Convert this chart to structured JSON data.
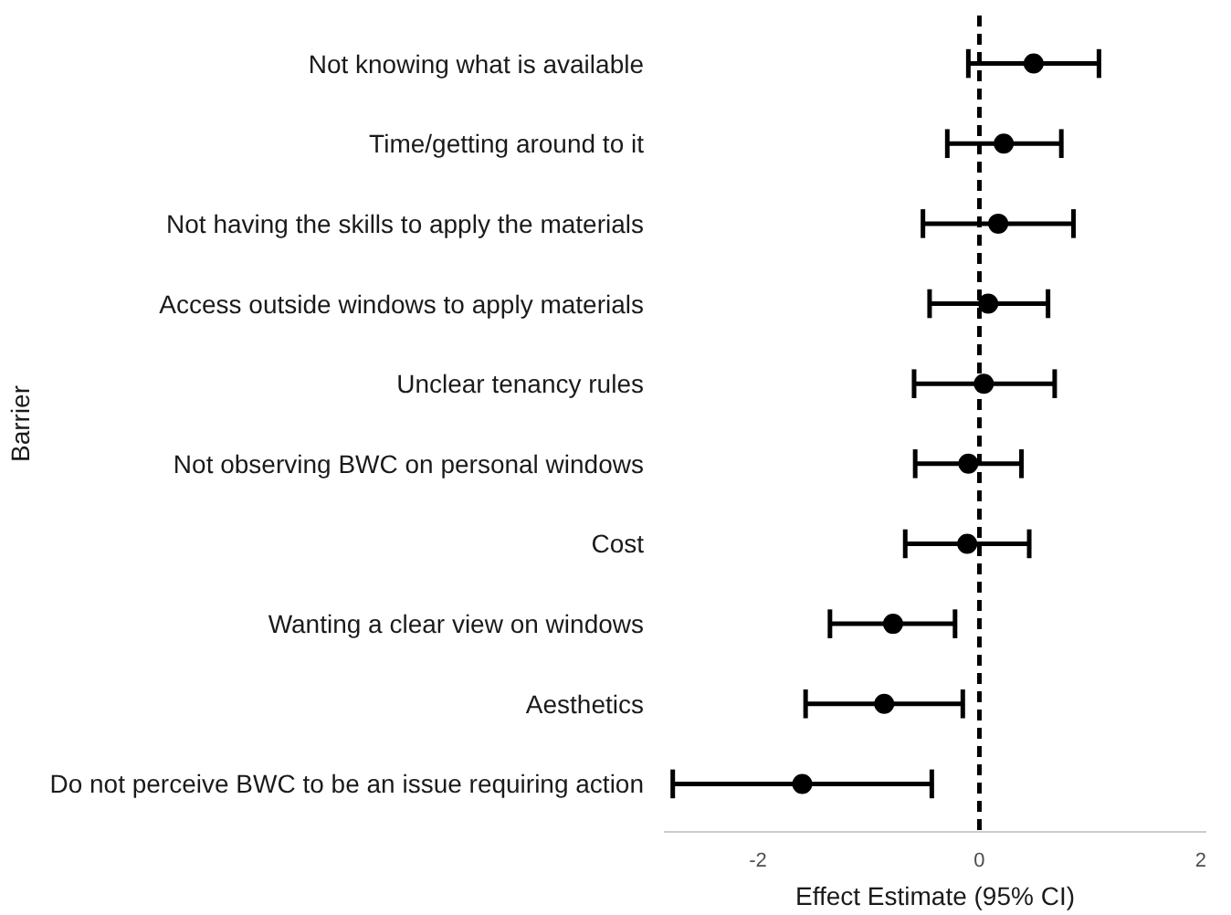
{
  "chart_data": {
    "type": "scatter",
    "orientation": "horizontal",
    "xlabel": "Effect Estimate (95% CI)",
    "ylabel": "Barrier",
    "categories": [
      "Not knowing what is available",
      "Time/getting around to it",
      "Not having the skills to apply the materials",
      "Access outside windows to apply materials",
      "Unclear tenancy rules",
      "Not observing BWC on personal windows",
      "Cost",
      "Wanting a clear view on windows",
      "Aesthetics",
      "Do not perceive BWC to be an issue requiring action"
    ],
    "series": [
      {
        "color": "#000000",
        "values": [
          0.49,
          0.22,
          0.17,
          0.08,
          0.04,
          -0.1,
          -0.11,
          -0.78,
          -0.86,
          -1.6
        ],
        "errors": [
          [
            -0.1,
            1.08
          ],
          [
            -0.29,
            0.74
          ],
          [
            -0.51,
            0.85
          ],
          [
            -0.45,
            0.62
          ],
          [
            -0.59,
            0.68
          ],
          [
            -0.58,
            0.38
          ],
          [
            -0.67,
            0.45
          ],
          [
            -1.35,
            -0.22
          ],
          [
            -1.57,
            -0.15
          ],
          [
            -2.77,
            -0.43
          ]
        ]
      }
    ],
    "xlim": [
      -2.85,
      2.05
    ],
    "xticks": [
      -2,
      0,
      2
    ],
    "ref_lines": [
      {
        "axis": "x",
        "value": 0,
        "color": "#000000",
        "line_style": "dashed"
      }
    ],
    "marker": "circle",
    "grid": false
  }
}
